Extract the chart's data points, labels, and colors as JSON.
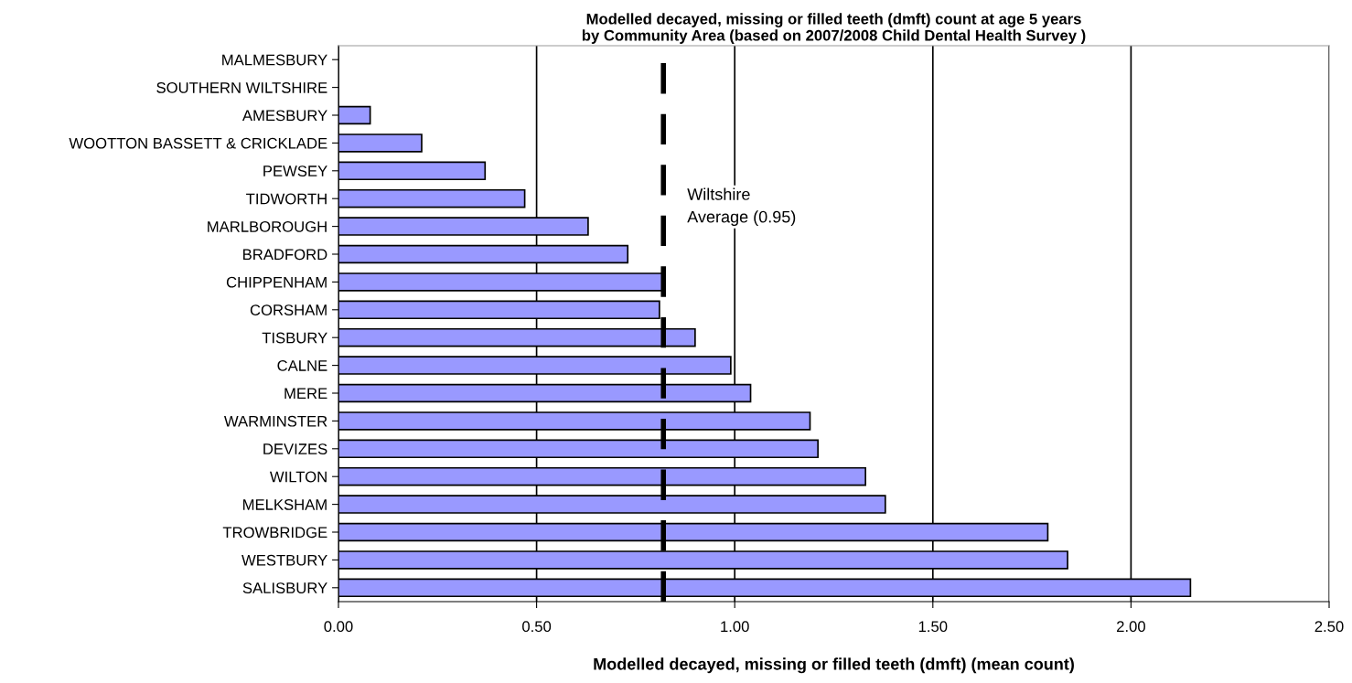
{
  "chart_data": {
    "type": "bar",
    "orientation": "horizontal",
    "title": "Modelled decayed, missing or filled teeth (dmft) count at age 5 years\nby Community Area (based on 2007/2008 Child Dental Health Survey )",
    "xlabel": "Modelled decayed, missing or filled teeth (dmft) (mean count)",
    "categories": [
      "MALMESBURY",
      "SOUTHERN WILTSHIRE",
      "AMESBURY",
      "WOOTTON BASSETT & CRICKLADE",
      "PEWSEY",
      "TIDWORTH",
      "MARLBOROUGH",
      "BRADFORD",
      "CHIPPENHAM",
      "CORSHAM",
      "TISBURY",
      "CALNE",
      "MERE",
      "WARMINSTER",
      "DEVIZES",
      "WILTON",
      "MELKSHAM",
      "TROWBRIDGE",
      "WESTBURY",
      "SALISBURY"
    ],
    "values": [
      0,
      0,
      0.08,
      0.21,
      0.37,
      0.47,
      0.63,
      0.73,
      0.82,
      0.81,
      0.9,
      0.99,
      1.04,
      1.19,
      1.21,
      1.33,
      1.38,
      1.79,
      1.84,
      2.15
    ],
    "color": "#9999ff",
    "xlim": [
      0,
      2.5
    ],
    "xticks": [
      {
        "value": 0,
        "label": "0.00"
      },
      {
        "value": 0.5,
        "label": "0.50"
      },
      {
        "value": 1.0,
        "label": "1.00"
      },
      {
        "value": 1.5,
        "label": "1.50"
      },
      {
        "value": 2.0,
        "label": "2.00"
      },
      {
        "value": 2.5,
        "label": "2.50"
      }
    ],
    "grid": "x",
    "ref_lines": [
      {
        "axis": "x",
        "value": 0.82,
        "label": "Wiltshire\nAverage (0.95)",
        "color": "#000000",
        "line_style": "dashed"
      }
    ]
  }
}
